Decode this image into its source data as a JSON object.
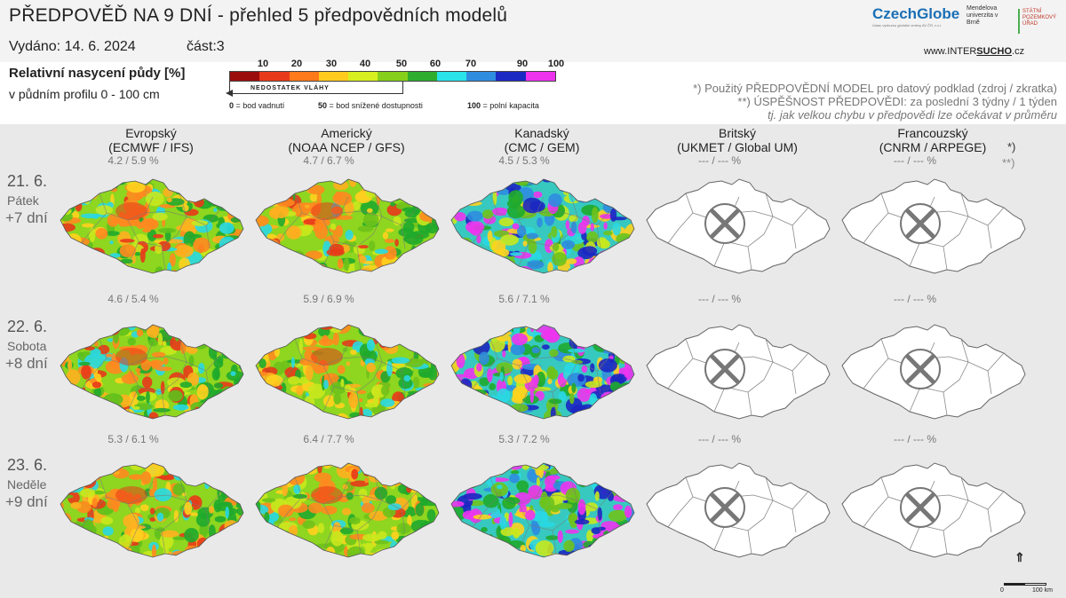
{
  "header": {
    "title": "PŘEDPOVĚĎ NA 9 DNÍ - přehled 5 předpovědních modelů",
    "issued": "Vydáno: 14. 6. 2024",
    "part": "část:3"
  },
  "logos": {
    "czechglobe": "CzechGlobe",
    "czechglobe_sub": "Ústav výzkumu globální změny AV ČR, v.v.i.",
    "mendel": "Mendelova univerzita v Brně",
    "szu": "STÁTNÍ POZEMKOVÝ ÚŘAD",
    "www_prefix": "www.INTER",
    "www_mid": "SUCHO",
    "www_suffix": ".cz"
  },
  "legend": {
    "title": "Relativní nasycení půdy [%]",
    "subtitle": "v půdním profilu 0 - 100 cm",
    "ticks": [
      "10",
      "20",
      "30",
      "40",
      "50",
      "60",
      "70",
      "90",
      "100"
    ],
    "colors": [
      "#9b0d0d",
      "#e8391a",
      "#ff9a1f",
      "#ffd21e",
      "#cfe617",
      "#6fc21b",
      "#1faa2c",
      "#24d7e2",
      "#2f8ce0",
      "#1c27c2",
      "#ee33ee"
    ],
    "deficit_label": "NEDOSTATEK VLÁHY",
    "note0_num": "0",
    "note0_text": " = bod vadnutí",
    "note50_num": "50",
    "note50_text": " = bod snížené dostupnosti",
    "note100_num": "100",
    "note100_text": " = polní kapacita"
  },
  "notes": {
    "line1": "*)  Použitý PŘEDPOVĚDNÍ MODEL pro datový podklad (zdroj / zkratka)",
    "line2": "**) ÚSPĚŠNOST PŘEDPOVĚDI: za poslední 3 týdny / 1 týden",
    "line3": "tj. jak velkou chybu v předpovědi lze očekávat v průměru",
    "star1": "*)",
    "star2": "**)"
  },
  "models": [
    {
      "name": "Evropský",
      "code": "(ECMWF / IFS)",
      "available": true
    },
    {
      "name": "Americký",
      "code": "(NOAA NCEP / GFS)",
      "available": true
    },
    {
      "name": "Kanadský",
      "code": "(CMC / GEM)",
      "available": true
    },
    {
      "name": "Britský",
      "code": "(UKMET / Global UM)",
      "available": false
    },
    {
      "name": "Francouzský",
      "code": "(CNRM / ARPEGE)",
      "available": false
    }
  ],
  "rows": [
    {
      "date": "21. 6.",
      "day": "Pátek",
      "offset": "+7 dní",
      "stats": [
        "4.2 / 5.9 %",
        "4.7 / 6.7 %",
        "4.5 / 5.3 %",
        "--- / --- %",
        "--- / --- %"
      ]
    },
    {
      "date": "22. 6.",
      "day": "Sobota",
      "offset": "+8 dní",
      "stats": [
        "4.6 / 5.4 %",
        "5.9 / 6.9 %",
        "5.6 / 7.1 %",
        "--- / --- %",
        "--- / --- %"
      ]
    },
    {
      "date": "23. 6.",
      "day": "Neděle",
      "offset": "+9 dní",
      "stats": [
        "5.3 / 6.1 %",
        "6.4 / 7.7 %",
        "5.3 / 7.2 %",
        "--- / --- %",
        "--- / --- %"
      ]
    }
  ],
  "scale": {
    "north": "S",
    "zero": "0",
    "hundred": "100 km"
  },
  "icons": {
    "no_data": "x-cross-icon",
    "north_arrow": "north-arrow-icon"
  }
}
